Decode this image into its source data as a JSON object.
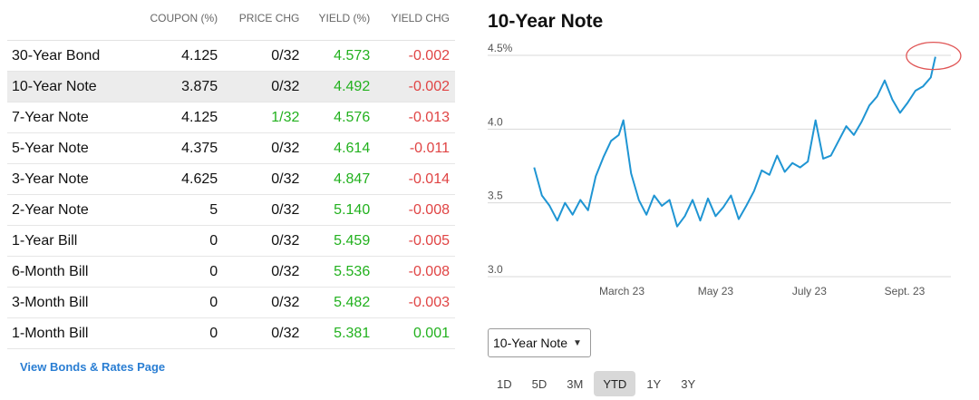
{
  "bonds_table": {
    "headers": [
      "",
      "COUPON (%)",
      "PRICE CHG",
      "YIELD (%)",
      "YIELD CHG"
    ],
    "rows": [
      {
        "name": "30-Year Bond",
        "coupon": "4.125",
        "price_chg": "0/32",
        "yield": "4.573",
        "yield_chg": "-0.002",
        "price_up": false,
        "chg_dir": "neg"
      },
      {
        "name": "10-Year Note",
        "coupon": "3.875",
        "price_chg": "0/32",
        "yield": "4.492",
        "yield_chg": "-0.002",
        "price_up": false,
        "chg_dir": "neg",
        "selected": true
      },
      {
        "name": "7-Year Note",
        "coupon": "4.125",
        "price_chg": "1/32",
        "yield": "4.576",
        "yield_chg": "-0.013",
        "price_up": true,
        "chg_dir": "neg"
      },
      {
        "name": "5-Year Note",
        "coupon": "4.375",
        "price_chg": "0/32",
        "yield": "4.614",
        "yield_chg": "-0.011",
        "price_up": false,
        "chg_dir": "neg"
      },
      {
        "name": "3-Year Note",
        "coupon": "4.625",
        "price_chg": "0/32",
        "yield": "4.847",
        "yield_chg": "-0.014",
        "price_up": false,
        "chg_dir": "neg"
      },
      {
        "name": "2-Year Note",
        "coupon": "5",
        "price_chg": "0/32",
        "yield": "5.140",
        "yield_chg": "-0.008",
        "price_up": false,
        "chg_dir": "neg"
      },
      {
        "name": "1-Year Bill",
        "coupon": "0",
        "price_chg": "0/32",
        "yield": "5.459",
        "yield_chg": "-0.005",
        "price_up": false,
        "chg_dir": "neg"
      },
      {
        "name": "6-Month Bill",
        "coupon": "0",
        "price_chg": "0/32",
        "yield": "5.536",
        "yield_chg": "-0.008",
        "price_up": false,
        "chg_dir": "neg"
      },
      {
        "name": "3-Month Bill",
        "coupon": "0",
        "price_chg": "0/32",
        "yield": "5.482",
        "yield_chg": "-0.003",
        "price_up": false,
        "chg_dir": "neg"
      },
      {
        "name": "1-Month Bill",
        "coupon": "0",
        "price_chg": "0/32",
        "yield": "5.381",
        "yield_chg": "0.001",
        "price_up": false,
        "chg_dir": "pos"
      }
    ],
    "view_link": "View Bonds & Rates Page"
  },
  "colors": {
    "positive": "#22b11e",
    "negative": "#e04444",
    "line": "#1f95d3",
    "link": "#2a7ed3",
    "highlight_circle": "#e05555"
  },
  "chart": {
    "title": "10-Year Note",
    "select_value": "10-Year Note",
    "ranges": [
      "1D",
      "5D",
      "3M",
      "YTD",
      "1Y",
      "3Y"
    ],
    "active_range": "YTD"
  },
  "chart_data": {
    "type": "line",
    "title": "10-Year Note",
    "y_ticks": [
      "4.5%",
      "4.0",
      "3.5",
      "3.0"
    ],
    "y_tick_values": [
      4.5,
      4.0,
      3.5,
      3.0
    ],
    "ylim": [
      3.0,
      4.5
    ],
    "x_ticks": [
      "March 23",
      "May 23",
      "July 23",
      "Sept. 23"
    ],
    "x_tick_values": [
      "2023-03-01",
      "2023-05-01",
      "2023-07-01",
      "2023-09-01"
    ],
    "grid": true,
    "series": [
      {
        "dates": [
          "2023-01-03",
          "2023-01-08",
          "2023-01-13",
          "2023-01-18",
          "2023-01-23",
          "2023-01-28",
          "2023-02-02",
          "2023-02-07",
          "2023-02-12",
          "2023-02-17",
          "2023-02-22",
          "2023-02-27",
          "2023-03-02",
          "2023-03-07",
          "2023-03-12",
          "2023-03-17",
          "2023-03-22",
          "2023-03-27",
          "2023-04-01",
          "2023-04-06",
          "2023-04-11",
          "2023-04-16",
          "2023-04-21",
          "2023-04-26",
          "2023-05-01",
          "2023-05-06",
          "2023-05-11",
          "2023-05-16",
          "2023-05-21",
          "2023-05-26",
          "2023-05-31",
          "2023-06-05",
          "2023-06-10",
          "2023-06-15",
          "2023-06-20",
          "2023-06-25",
          "2023-06-30",
          "2023-07-05",
          "2023-07-10",
          "2023-07-15",
          "2023-07-20",
          "2023-07-25",
          "2023-07-30",
          "2023-08-04",
          "2023-08-09",
          "2023-08-14",
          "2023-08-19",
          "2023-08-24",
          "2023-08-29",
          "2023-09-03",
          "2023-09-08",
          "2023-09-13",
          "2023-09-18",
          "2023-09-21"
        ],
        "values": [
          3.74,
          3.55,
          3.48,
          3.38,
          3.5,
          3.42,
          3.52,
          3.45,
          3.68,
          3.81,
          3.92,
          3.96,
          4.06,
          3.7,
          3.52,
          3.42,
          3.55,
          3.48,
          3.52,
          3.34,
          3.41,
          3.52,
          3.38,
          3.53,
          3.41,
          3.47,
          3.55,
          3.39,
          3.48,
          3.58,
          3.72,
          3.69,
          3.82,
          3.71,
          3.77,
          3.74,
          3.78,
          4.06,
          3.8,
          3.82,
          3.92,
          4.02,
          3.96,
          4.05,
          4.16,
          4.22,
          4.33,
          4.2,
          4.11,
          4.18,
          4.26,
          4.29,
          4.35,
          4.49
        ]
      }
    ]
  }
}
